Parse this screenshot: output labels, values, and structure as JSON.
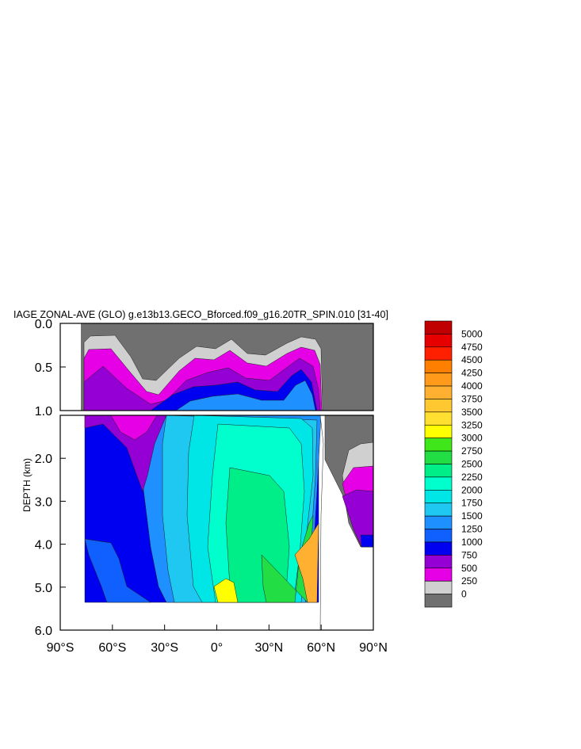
{
  "chart_data": {
    "type": "heatmap",
    "title": "IAGE ZONAL-AVE (GLO) g.e13b13.GECO_Bforced.f09_g16.20TR_SPIN.010 [31-40]",
    "ylabel": "DEPTH (km)",
    "xlabel": "",
    "x_tick_labels": [
      "90°S",
      "60°S",
      "30°S",
      "0°",
      "30°N",
      "60°N",
      "90°N"
    ],
    "x_tick_values": [
      -90,
      -60,
      -30,
      0,
      30,
      60,
      90
    ],
    "upper_panel": {
      "ylim": [
        0.0,
        1.0
      ],
      "y_tick_labels": [
        "0.0",
        "0.5",
        "1.0"
      ],
      "y_tick_values": [
        0.0,
        0.5,
        1.0
      ]
    },
    "lower_panel": {
      "ylim": [
        1.0,
        6.0
      ],
      "y_tick_labels": [
        "2.0",
        "3.0",
        "4.0",
        "5.0",
        "6.0"
      ],
      "y_tick_values": [
        2.0,
        3.0,
        4.0,
        5.0,
        6.0
      ]
    },
    "colorbar": {
      "levels": [
        "5000",
        "4750",
        "4500",
        "4250",
        "4000",
        "3750",
        "3500",
        "3250",
        "3000",
        "2750",
        "2500",
        "2250",
        "2000",
        "1750",
        "1500",
        "1250",
        "1000",
        "750",
        "500",
        "250",
        "0"
      ],
      "colors": [
        "#c00000",
        "#e60000",
        "#ff2000",
        "#ff7f00",
        "#ff9a1a",
        "#ffb030",
        "#ffc830",
        "#ffe030",
        "#ffff00",
        "#3ee61a",
        "#22dd44",
        "#00ee88",
        "#00ffcc",
        "#00e5e5",
        "#1fc8f0",
        "#1e90ff",
        "#1060ff",
        "#0000f0",
        "#9500d4",
        "#e600e6",
        "#d0d0d0",
        "#707070"
      ]
    },
    "grid": false,
    "legend": "right (colorbar)"
  }
}
